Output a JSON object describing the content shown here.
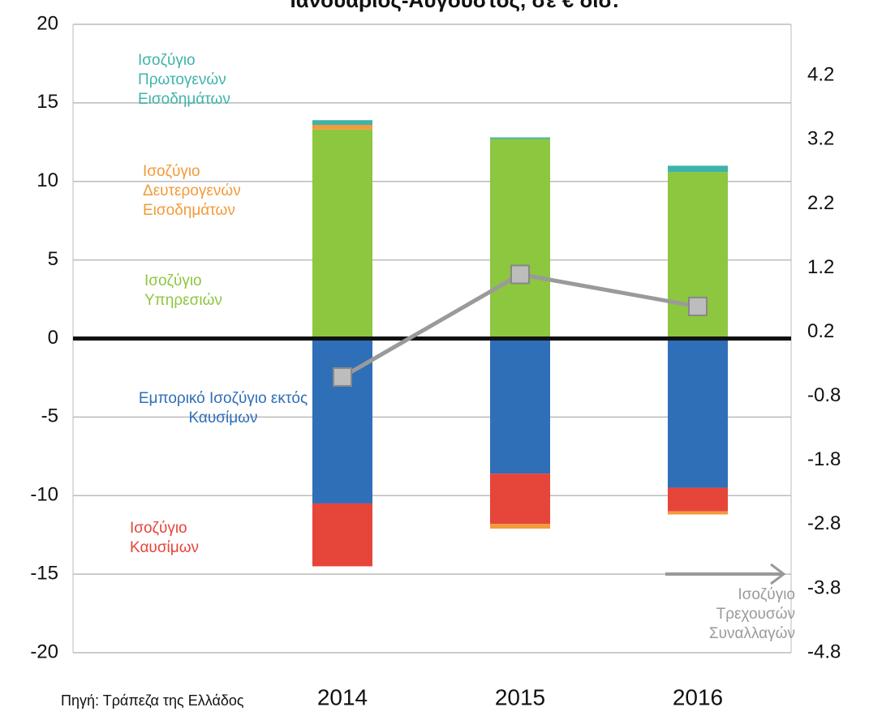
{
  "chart_data": {
    "type": "bar",
    "title": "Ιανουάριος-Αύγουστος, σε € δισ.",
    "source": "Πηγή: Τράπεζα της Ελλάδος",
    "categories": [
      "2014",
      "2015",
      "2016"
    ],
    "series": [
      {
        "name": "Εμπορικό Ισοζύγιο εκτός Καυσίμων",
        "color": "#2f6fb8",
        "values": [
          -10.5,
          -8.6,
          -9.5
        ]
      },
      {
        "name": "Ισοζύγιο Καυσίμων",
        "color": "#e6453a",
        "values": [
          -4.0,
          -3.2,
          -1.5
        ]
      },
      {
        "name": "Ισοζύγιο Υπηρεσιών",
        "color": "#8dc63f",
        "values": [
          13.3,
          12.7,
          10.6
        ]
      },
      {
        "name": "Ισοζύγιο Δευτερογενών Εισοδημάτων",
        "color": "#f39a3a",
        "values": [
          0.3,
          -0.3,
          -0.2
        ]
      },
      {
        "name": "Ισοζύγιο Πρωτογενών Εισοδημάτων",
        "color": "#3db4aa",
        "values": [
          0.3,
          0.1,
          0.4
        ]
      },
      {
        "name": "Ισοζύγιο Τρεχουσών Συναλλαγών",
        "color": "#9a9a9a",
        "type": "line",
        "axis": "y2",
        "values": [
          -0.5,
          1.1,
          0.6
        ]
      }
    ],
    "ylim": [
      -20,
      20
    ],
    "yticks": [
      -20,
      -15,
      -10,
      -5,
      0,
      5,
      10,
      15,
      20
    ],
    "y2lim": [
      -4.8,
      5.0
    ],
    "y2ticks": [
      -4.8,
      -3.8,
      -2.8,
      -1.8,
      -0.8,
      0.2,
      1.2,
      2.2,
      3.2,
      4.2
    ],
    "grid": true
  }
}
